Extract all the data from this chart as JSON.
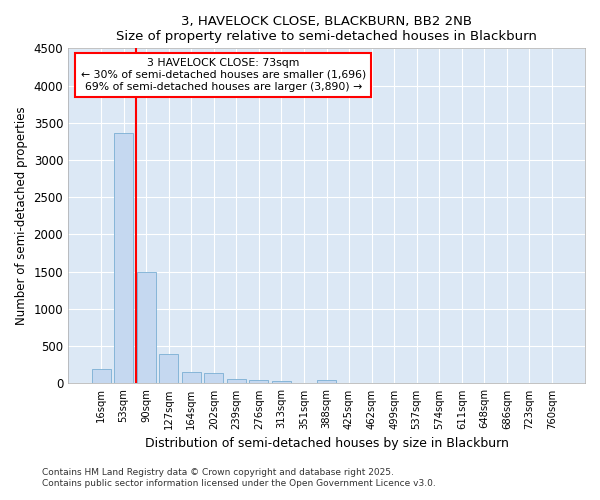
{
  "title1": "3, HAVELOCK CLOSE, BLACKBURN, BB2 2NB",
  "title2": "Size of property relative to semi-detached houses in Blackburn",
  "xlabel": "Distribution of semi-detached houses by size in Blackburn",
  "ylabel": "Number of semi-detached properties",
  "categories": [
    "16sqm",
    "53sqm",
    "90sqm",
    "127sqm",
    "164sqm",
    "202sqm",
    "239sqm",
    "276sqm",
    "313sqm",
    "351sqm",
    "388sqm",
    "425sqm",
    "462sqm",
    "499sqm",
    "537sqm",
    "574sqm",
    "611sqm",
    "648sqm",
    "686sqm",
    "723sqm",
    "760sqm"
  ],
  "bar_values": [
    200,
    3360,
    1500,
    390,
    150,
    140,
    65,
    40,
    30,
    0,
    40,
    0,
    0,
    0,
    0,
    0,
    0,
    0,
    0,
    0,
    0
  ],
  "bar_color": "#c5d8f0",
  "bar_edge_color": "#7aafd4",
  "red_line_x": 1.54,
  "annotation_line1": "3 HAVELOCK CLOSE: 73sqm",
  "annotation_line2": "← 30% of semi-detached houses are smaller (1,696)",
  "annotation_line3": "69% of semi-detached houses are larger (3,890) →",
  "ylim": [
    0,
    4500
  ],
  "yticks": [
    0,
    500,
    1000,
    1500,
    2000,
    2500,
    3000,
    3500,
    4000,
    4500
  ],
  "background_color": "#dce8f5",
  "grid_color": "#ffffff",
  "fig_background": "#ffffff",
  "footnote1": "Contains HM Land Registry data © Crown copyright and database right 2025.",
  "footnote2": "Contains public sector information licensed under the Open Government Licence v3.0."
}
